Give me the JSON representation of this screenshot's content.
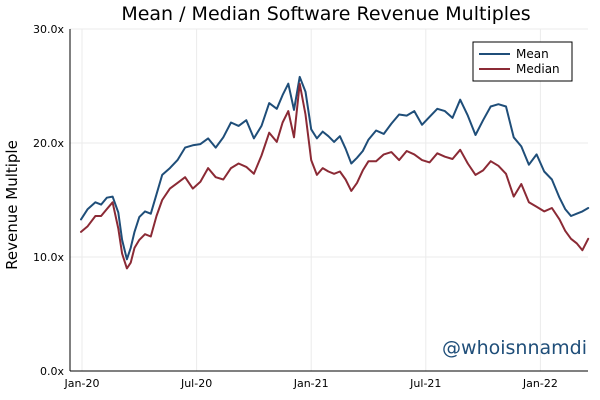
{
  "chart_data": {
    "type": "line",
    "title": "Mean / Median Software Revenue Multiples",
    "xlabel": "",
    "ylabel": "Revenue Multiple",
    "x_ticks": [
      "Jan-20",
      "Jul-20",
      "Jan-21",
      "Jul-21",
      "Jan-22"
    ],
    "y_ticks": [
      "0.0x",
      "10.0x",
      "20.0x",
      "30.0x"
    ],
    "ylim": [
      0,
      30
    ],
    "grid": true,
    "legend_position": "top-right",
    "x_unit": "months since Jan-20",
    "x": [
      -0.05,
      0.3,
      0.7,
      1.0,
      1.3,
      1.6,
      1.9,
      2.1,
      2.35,
      2.55,
      2.75,
      3.0,
      3.3,
      3.6,
      3.9,
      4.2,
      4.6,
      5.0,
      5.4,
      5.8,
      6.2,
      6.6,
      7.0,
      7.4,
      7.8,
      8.2,
      8.6,
      9.0,
      9.4,
      9.8,
      10.2,
      10.5,
      10.8,
      11.1,
      11.4,
      11.7,
      12.0,
      12.3,
      12.6,
      12.9,
      13.2,
      13.5,
      13.8,
      14.1,
      14.4,
      14.7,
      15.0,
      15.4,
      15.8,
      16.2,
      16.6,
      17.0,
      17.4,
      17.8,
      18.2,
      18.6,
      19.0,
      19.4,
      19.8,
      20.2,
      20.6,
      21.0,
      21.4,
      21.8,
      22.2,
      22.6,
      23.0,
      23.4,
      23.8,
      24.2,
      24.6,
      25.0,
      25.3,
      25.6,
      25.9,
      26.2,
      26.5
    ],
    "series": [
      {
        "name": "Mean",
        "color": "#1f4e79",
        "values": [
          13.3,
          14.2,
          14.8,
          14.6,
          15.2,
          15.3,
          13.9,
          11.5,
          9.8,
          10.8,
          12.2,
          13.5,
          14.0,
          13.8,
          15.5,
          17.2,
          17.8,
          18.5,
          19.6,
          19.8,
          19.9,
          20.4,
          19.6,
          20.5,
          21.8,
          21.5,
          22.0,
          20.4,
          21.5,
          23.5,
          23.0,
          24.2,
          25.2,
          22.9,
          25.8,
          24.5,
          21.2,
          20.4,
          21.0,
          20.6,
          20.1,
          20.6,
          19.5,
          18.2,
          18.7,
          19.3,
          20.3,
          21.1,
          20.8,
          21.7,
          22.5,
          22.4,
          22.8,
          21.6,
          22.3,
          23.0,
          22.8,
          22.2,
          23.8,
          22.4,
          20.7,
          22.0,
          23.2,
          23.4,
          23.2,
          20.5,
          19.7,
          18.1,
          19.0,
          17.5,
          16.8,
          15.2,
          14.2,
          13.6,
          13.8,
          14.0,
          14.3
        ]
      },
      {
        "name": "Median",
        "color": "#8b2a35",
        "values": [
          12.2,
          12.7,
          13.6,
          13.6,
          14.2,
          14.8,
          12.5,
          10.3,
          9.0,
          9.5,
          10.8,
          11.5,
          12.0,
          11.8,
          13.6,
          15.0,
          16.0,
          16.5,
          17.0,
          16.0,
          16.6,
          17.8,
          17.0,
          16.8,
          17.8,
          18.2,
          17.9,
          17.3,
          18.9,
          20.9,
          20.1,
          21.8,
          22.8,
          20.5,
          25.2,
          22.5,
          18.5,
          17.2,
          17.8,
          17.5,
          17.3,
          17.5,
          16.8,
          15.8,
          16.5,
          17.6,
          18.4,
          18.4,
          19.0,
          19.2,
          18.5,
          19.3,
          19.0,
          18.5,
          18.3,
          19.1,
          18.8,
          18.6,
          19.4,
          18.2,
          17.2,
          17.6,
          18.4,
          18.0,
          17.3,
          15.3,
          16.4,
          14.8,
          14.4,
          14.0,
          14.3,
          13.3,
          12.3,
          11.6,
          11.2,
          10.6,
          11.6
        ]
      }
    ]
  },
  "watermark": "@whoisnnamdi"
}
